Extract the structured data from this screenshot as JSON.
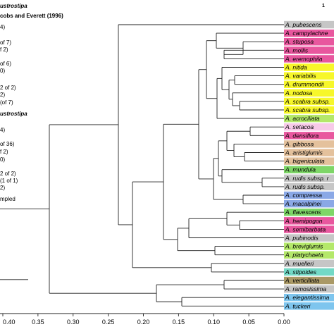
{
  "legend_panel": {
    "lines": [
      {
        "text": "ustrostipa",
        "style": "bi"
      },
      {
        "text": "cobs and Everett (1996)",
        "style": "b"
      },
      {
        "text": "4)",
        "style": ""
      },
      {
        "text": "of 7)",
        "style": ""
      },
      {
        "text": "f 2)",
        "style": ""
      },
      {
        "text": "of 6)",
        "style": ""
      },
      {
        "text": "0)",
        "style": ""
      },
      {
        "text": "2 of 2)",
        "style": ""
      },
      {
        "text": "2)",
        "style": ""
      },
      {
        "text": "(of 7)",
        "style": ""
      },
      {
        "text": "ustrostipa",
        "style": "bi"
      },
      {
        "text": "4)",
        "style": ""
      },
      {
        "text": "of 36)",
        "style": ""
      },
      {
        "text": "f 2)",
        "style": ""
      },
      {
        "text": "0)",
        "style": ""
      },
      {
        "text": "2 of 2)",
        "style": ""
      },
      {
        "text": "(1 of 1)",
        "style": ""
      },
      {
        "text": "2)",
        "style": ""
      },
      {
        "text": "mpled",
        "style": ""
      }
    ]
  },
  "column_number": "1",
  "axis": {
    "ticks": [
      0.4,
      0.35,
      0.3,
      0.25,
      0.2,
      0.15,
      0.1,
      0.05,
      0.0
    ],
    "tick_labels": [
      "0.40",
      "0.35",
      "0.30",
      "0.25",
      "0.20",
      "0.15",
      "0.10",
      "0.05",
      "0.00"
    ],
    "range": [
      0.4,
      0.0
    ]
  },
  "colors": {
    "grey": "#c6c6c6",
    "magenta": "#e8579e",
    "yellow": "#f7f72a",
    "lime": "#b4e86a",
    "pink_light": "#f7c9e8",
    "tan": "#e4c19c",
    "green": "#7ed667",
    "blue": "#8aa8e6",
    "teal": "#73d9c6",
    "brown": "#aa9966",
    "cyan": "#7ec5ee"
  },
  "taxa": [
    {
      "name": "A. pubescens",
      "color": "grey"
    },
    {
      "name": "A. campylachne",
      "color": "magenta"
    },
    {
      "name": "A. stuposa",
      "color": "magenta"
    },
    {
      "name": "A. mollis",
      "color": "magenta"
    },
    {
      "name": "A. eremophila",
      "color": "magenta"
    },
    {
      "name": "A. nitida",
      "color": "yellow"
    },
    {
      "name": "A. variabilis",
      "color": "yellow"
    },
    {
      "name": "A. drummondii",
      "color": "yellow"
    },
    {
      "name": "A. nodosa",
      "color": "yellow"
    },
    {
      "name": "A. scabra subsp.",
      "color": "yellow"
    },
    {
      "name": "A. scabra subsp.",
      "color": "yellow"
    },
    {
      "name": "A. acrociliata",
      "color": "lime"
    },
    {
      "name": "A. setacoa",
      "color": "pink_light"
    },
    {
      "name": "A. densiflora",
      "color": "magenta"
    },
    {
      "name": "A. gibbosa",
      "color": "tan"
    },
    {
      "name": "A. aristiglumis",
      "color": "tan"
    },
    {
      "name": "A. bigeniculata",
      "color": "tan"
    },
    {
      "name": "A. mundula",
      "color": "green"
    },
    {
      "name": "A. rudis subsp. r",
      "color": "grey"
    },
    {
      "name": "A. rudis subsp.",
      "color": "grey"
    },
    {
      "name": "A. compressa",
      "color": "blue"
    },
    {
      "name": "A. macalpinei",
      "color": "blue"
    },
    {
      "name": "A. flavescens",
      "color": "green"
    },
    {
      "name": "A. hemipogon",
      "color": "magenta"
    },
    {
      "name": "A. semibarbata",
      "color": "magenta"
    },
    {
      "name": "A. pubinodis",
      "color": "grey"
    },
    {
      "name": "A. breviglumis",
      "color": "lime"
    },
    {
      "name": "A. platychaeta",
      "color": "lime"
    },
    {
      "name": "A. muelleri",
      "color": "grey"
    },
    {
      "name": "A. stipoides",
      "color": "teal"
    },
    {
      "name": "A. verticillata",
      "color": "brown"
    },
    {
      "name": "A. ramosissima",
      "color": "grey"
    },
    {
      "name": "A. elegantissima",
      "color": "cyan"
    },
    {
      "name": "A. tuckeri",
      "color": "cyan"
    }
  ]
}
